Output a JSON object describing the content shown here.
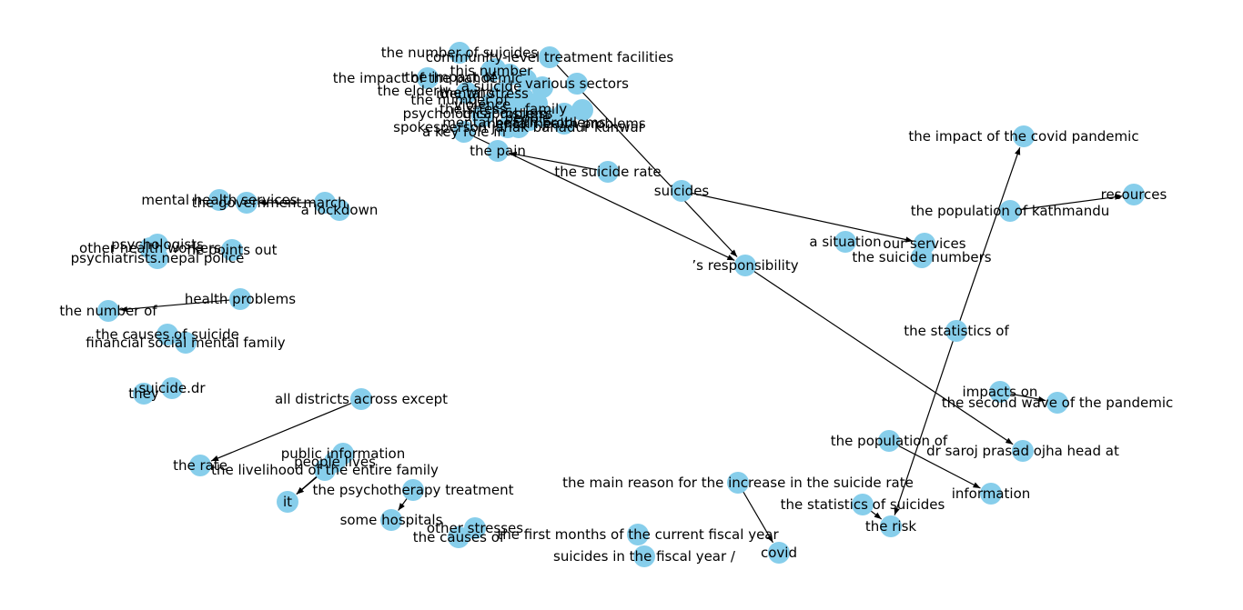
{
  "style": {
    "node_color": "#87ceeb",
    "edge_color": "#000000",
    "label_color": "#000000",
    "background": "#ffffff"
  },
  "nodes": [
    {
      "id": "num_suicides",
      "label": "the number of suicides"
    },
    {
      "id": "community",
      "label": "community-level treatment facilities"
    },
    {
      "id": "this_number",
      "label": "this number"
    },
    {
      "id": "impact_pandemic_top",
      "label": "the impact of the pandemic"
    },
    {
      "id": "sectors",
      "label": "various sectors"
    },
    {
      "id": "the_who",
      "label": "the who"
    },
    {
      "id": "spokesperson",
      "label": "spokesperson janak bahadur kunwar"
    },
    {
      "id": "key_role",
      "label": "a key role in"
    },
    {
      "id": "the_pain",
      "label": "the pain"
    },
    {
      "id": "health_problems_top",
      "label": "mental health problems"
    },
    {
      "id": "suicide_rate",
      "label": "the suicide rate"
    },
    {
      "id": "suicides",
      "label": "suicides"
    },
    {
      "id": "responsibility",
      "label": "’s responsibility"
    },
    {
      "id": "situation",
      "label": "a situation"
    },
    {
      "id": "services",
      "label": "our services"
    },
    {
      "id": "suicide_numbers",
      "label": "the suicide numbers"
    },
    {
      "id": "impact_covid",
      "label": "the impact of the covid pandemic"
    },
    {
      "id": "pop_kathmandu",
      "label": "the population of kathmandu"
    },
    {
      "id": "resources",
      "label": "resources"
    },
    {
      "id": "statistics_of",
      "label": "the statistics of"
    },
    {
      "id": "impacts_on",
      "label": "impacts on"
    },
    {
      "id": "second_wave",
      "label": "the second wave of the pandemic"
    },
    {
      "id": "population_of",
      "label": "the population of"
    },
    {
      "id": "dr_saroj",
      "label": "dr saroj prasad ojha head at"
    },
    {
      "id": "information",
      "label": "information"
    },
    {
      "id": "main_reason",
      "label": "the main reason for the increase in the suicide rate"
    },
    {
      "id": "covid",
      "label": "covid"
    },
    {
      "id": "stats_suicides",
      "label": "the statistics of suicides"
    },
    {
      "id": "the_risk",
      "label": "the risk"
    },
    {
      "id": "mhs",
      "label": "mental health services"
    },
    {
      "id": "government",
      "label": "the government"
    },
    {
      "id": "march",
      "label": "march"
    },
    {
      "id": "lockdown",
      "label": "a lockdown"
    },
    {
      "id": "psychologists",
      "label": "psychologists"
    },
    {
      "id": "other_health",
      "label": "other health workers"
    },
    {
      "id": "points_out",
      "label": "he points out"
    },
    {
      "id": "psychiatrists",
      "label": "psychiatrists.nepal police"
    },
    {
      "id": "health_problems",
      "label": "health problems"
    },
    {
      "id": "number_of",
      "label": "the number of"
    },
    {
      "id": "causes_suicide",
      "label": "the causes of suicide"
    },
    {
      "id": "financial",
      "label": "financial social mental family"
    },
    {
      "id": "suicide_dr",
      "label": "suicide.dr"
    },
    {
      "id": "they",
      "label": "they"
    },
    {
      "id": "all_districts",
      "label": "all districts across except"
    },
    {
      "id": "the_rate",
      "label": "the rate"
    },
    {
      "id": "public_info",
      "label": "public information"
    },
    {
      "id": "people_lives",
      "label": "people lives"
    },
    {
      "id": "livelihood",
      "label": "the livelihood of the entire family"
    },
    {
      "id": "it",
      "label": "it"
    },
    {
      "id": "psychotherapy",
      "label": "the psychotherapy treatment"
    },
    {
      "id": "some_hospitals",
      "label": "some hospitals"
    },
    {
      "id": "other_stresses",
      "label": "other stresses"
    },
    {
      "id": "causes_of",
      "label": "the causes of"
    },
    {
      "id": "first_months",
      "label": "the first months of the current fiscal year"
    },
    {
      "id": "fiscal_year",
      "label": "suicides in the fiscal year /"
    }
  ],
  "extra_labels": [
    "mental health problems",
    "the impact of",
    "psychological distress",
    "violence",
    "mental stress",
    "the elderly",
    "the number of",
    "the stress",
    "this problem",
    "people",
    "a suicide",
    "family"
  ],
  "edges": [
    {
      "from": "suicide_rate",
      "to": "the_pain"
    },
    {
      "from": "community",
      "to": "responsibility"
    },
    {
      "from": "key_role",
      "to": "responsibility"
    },
    {
      "from": "suicides",
      "to": "services"
    },
    {
      "from": "responsibility",
      "to": "dr_saroj"
    },
    {
      "from": "pop_kathmandu",
      "to": "resources"
    },
    {
      "from": "statistics_of",
      "to": "impact_covid"
    },
    {
      "from": "statistics_of",
      "to": "the_risk"
    },
    {
      "from": "impacts_on",
      "to": "second_wave"
    },
    {
      "from": "population_of",
      "to": "information"
    },
    {
      "from": "main_reason",
      "to": "covid"
    },
    {
      "from": "stats_suicides",
      "to": "the_risk"
    },
    {
      "from": "march",
      "to": "government"
    },
    {
      "from": "health_problems",
      "to": "number_of"
    },
    {
      "from": "all_districts",
      "to": "the_rate"
    },
    {
      "from": "public_info",
      "to": "it"
    },
    {
      "from": "people_lives",
      "to": "it"
    },
    {
      "from": "livelihood",
      "to": "it"
    },
    {
      "from": "psychotherapy",
      "to": "some_hospitals"
    }
  ]
}
